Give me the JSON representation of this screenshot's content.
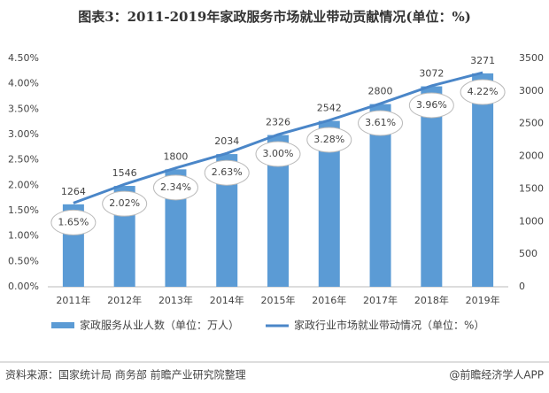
{
  "chart_data": {
    "type": "combo",
    "title": "图表3：2011-2019年家政服务市场就业带动贡献情况(单位：%)",
    "categories": [
      "2011年",
      "2012年",
      "2013年",
      "2014年",
      "2015年",
      "2016年",
      "2017年",
      "2018年",
      "2019年"
    ],
    "series": [
      {
        "name": "家政服务从业人数（单位：万人）",
        "type": "bar",
        "axis": "y2",
        "color": "#5b9bd5",
        "values": [
          1264,
          1546,
          1800,
          2034,
          2326,
          2542,
          2800,
          3072,
          3271
        ]
      },
      {
        "name": "家政行业市场就业带动情况（单位：%）",
        "type": "line",
        "axis": "y",
        "color": "#4a86c8",
        "values": [
          1.65,
          2.02,
          2.34,
          2.63,
          3.0,
          3.28,
          3.61,
          3.96,
          4.22
        ],
        "value_labels": [
          "1.65%",
          "2.02%",
          "2.34%",
          "2.63%",
          "3.00%",
          "3.28%",
          "3.61%",
          "3.96%",
          "4.22%"
        ]
      }
    ],
    "ylim": [
      0,
      4.5
    ],
    "yticks": [
      {
        "value": 0,
        "label": "0.00%"
      },
      {
        "value": 0.5,
        "label": "0.50%"
      },
      {
        "value": 1,
        "label": "1.00%"
      },
      {
        "value": 1.5,
        "label": "1.50%"
      },
      {
        "value": 2,
        "label": "2.00%"
      },
      {
        "value": 2.5,
        "label": "2.50%"
      },
      {
        "value": 3,
        "label": "3.00%"
      },
      {
        "value": 3.5,
        "label": "3.50%"
      },
      {
        "value": 4,
        "label": "4.00%"
      },
      {
        "value": 4.5,
        "label": "4.50%"
      }
    ],
    "y2lim": [
      0,
      3500
    ],
    "y2ticks": [
      0,
      500,
      1000,
      1500,
      2000,
      2500,
      3000,
      3500
    ],
    "legend": "bottom",
    "source": "资料来源：国家统计局 商务部 前瞻产业研究院整理",
    "credit": "@前瞻经济学人APP"
  }
}
